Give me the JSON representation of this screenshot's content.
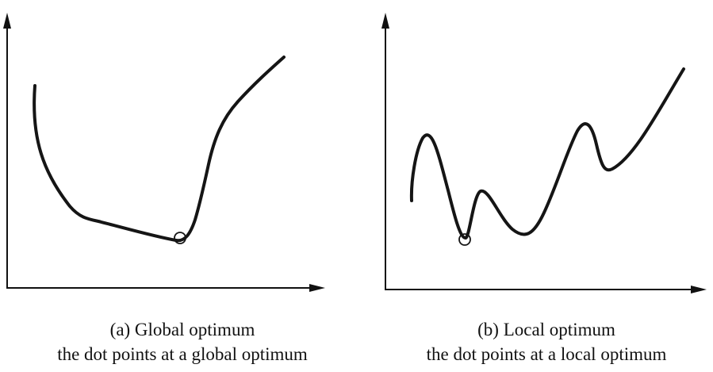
{
  "panels": [
    {
      "id": "global",
      "title": "(a) Global optimum",
      "subtitle": "the dot points at a global optimum"
    },
    {
      "id": "local",
      "title": "(b) Local optimum",
      "subtitle": "the dot points at a local optimum"
    }
  ],
  "colors": {
    "ink": "#111111",
    "curve": "#151515",
    "background": "#ffffff"
  },
  "markers": {
    "type": "hollow-circle",
    "meaning": "optimum"
  }
}
